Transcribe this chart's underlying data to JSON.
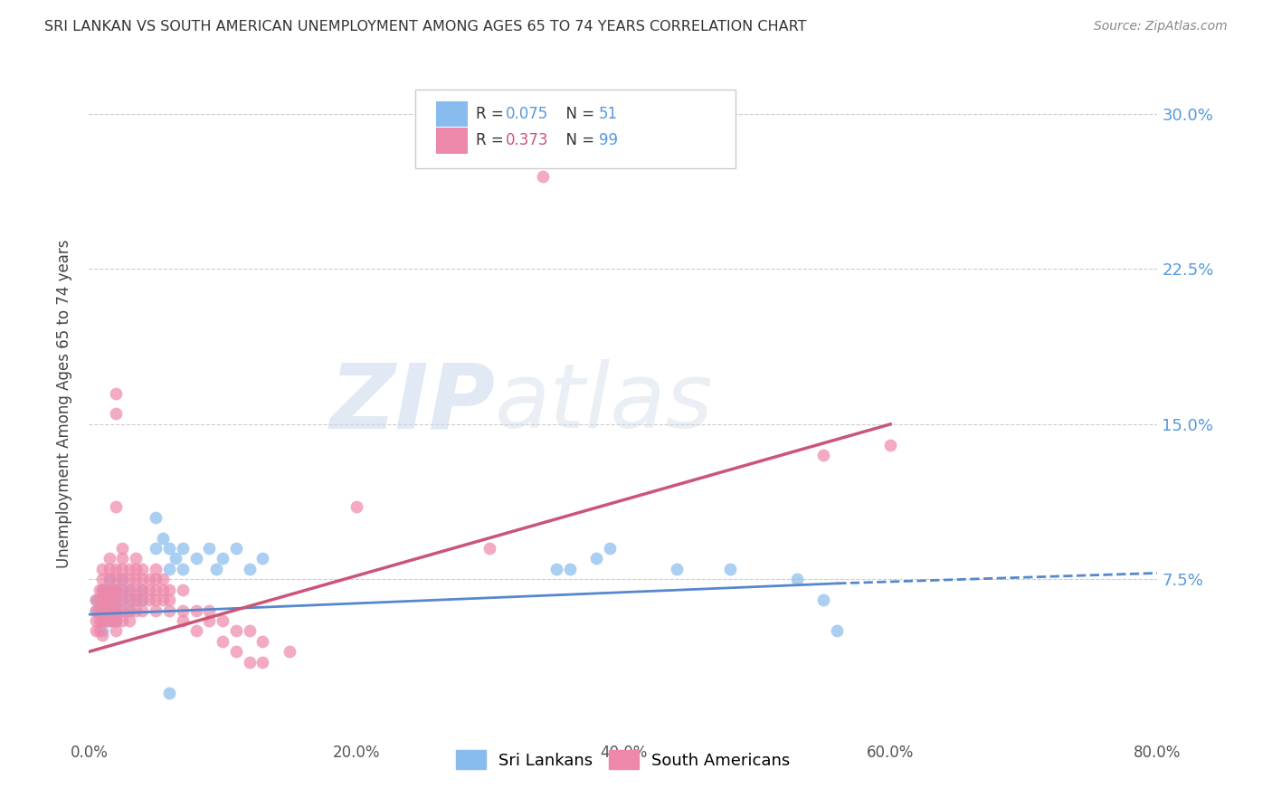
{
  "title": "SRI LANKAN VS SOUTH AMERICAN UNEMPLOYMENT AMONG AGES 65 TO 74 YEARS CORRELATION CHART",
  "source": "Source: ZipAtlas.com",
  "ylabel": "Unemployment Among Ages 65 to 74 years",
  "ytick_labels": [
    "30.0%",
    "22.5%",
    "15.0%",
    "7.5%"
  ],
  "ytick_values": [
    0.3,
    0.225,
    0.15,
    0.075
  ],
  "xlim": [
    0.0,
    0.8
  ],
  "ylim": [
    0.0,
    0.32
  ],
  "watermark_zip": "ZIP",
  "watermark_atlas": "atlas",
  "srilanka_color": "#88bbee",
  "southam_color": "#ee88aa",
  "srilanka_line_color": "#5588cc",
  "southam_line_color": "#cc5577",
  "right_tick_color": "#5599dd",
  "grid_color": "#cccccc",
  "srilanka_points": [
    [
      0.005,
      0.06
    ],
    [
      0.005,
      0.065
    ],
    [
      0.01,
      0.05
    ],
    [
      0.01,
      0.055
    ],
    [
      0.01,
      0.06
    ],
    [
      0.01,
      0.065
    ],
    [
      0.01,
      0.07
    ],
    [
      0.015,
      0.055
    ],
    [
      0.015,
      0.06
    ],
    [
      0.015,
      0.065
    ],
    [
      0.015,
      0.07
    ],
    [
      0.015,
      0.075
    ],
    [
      0.02,
      0.055
    ],
    [
      0.02,
      0.06
    ],
    [
      0.02,
      0.065
    ],
    [
      0.02,
      0.07
    ],
    [
      0.025,
      0.06
    ],
    [
      0.025,
      0.065
    ],
    [
      0.025,
      0.07
    ],
    [
      0.025,
      0.075
    ],
    [
      0.03,
      0.06
    ],
    [
      0.03,
      0.065
    ],
    [
      0.03,
      0.07
    ],
    [
      0.035,
      0.065
    ],
    [
      0.04,
      0.065
    ],
    [
      0.04,
      0.07
    ],
    [
      0.05,
      0.09
    ],
    [
      0.05,
      0.105
    ],
    [
      0.055,
      0.095
    ],
    [
      0.06,
      0.08
    ],
    [
      0.06,
      0.09
    ],
    [
      0.065,
      0.085
    ],
    [
      0.07,
      0.08
    ],
    [
      0.07,
      0.09
    ],
    [
      0.08,
      0.085
    ],
    [
      0.09,
      0.09
    ],
    [
      0.095,
      0.08
    ],
    [
      0.1,
      0.085
    ],
    [
      0.11,
      0.09
    ],
    [
      0.12,
      0.08
    ],
    [
      0.13,
      0.085
    ],
    [
      0.35,
      0.08
    ],
    [
      0.36,
      0.08
    ],
    [
      0.38,
      0.085
    ],
    [
      0.39,
      0.09
    ],
    [
      0.44,
      0.08
    ],
    [
      0.48,
      0.08
    ],
    [
      0.53,
      0.075
    ],
    [
      0.55,
      0.065
    ],
    [
      0.56,
      0.05
    ],
    [
      0.06,
      0.02
    ]
  ],
  "southam_points": [
    [
      0.005,
      0.05
    ],
    [
      0.005,
      0.055
    ],
    [
      0.005,
      0.06
    ],
    [
      0.005,
      0.065
    ],
    [
      0.008,
      0.05
    ],
    [
      0.008,
      0.055
    ],
    [
      0.008,
      0.06
    ],
    [
      0.008,
      0.065
    ],
    [
      0.008,
      0.07
    ],
    [
      0.01,
      0.048
    ],
    [
      0.01,
      0.055
    ],
    [
      0.01,
      0.06
    ],
    [
      0.01,
      0.065
    ],
    [
      0.01,
      0.07
    ],
    [
      0.01,
      0.075
    ],
    [
      0.01,
      0.08
    ],
    [
      0.012,
      0.055
    ],
    [
      0.012,
      0.06
    ],
    [
      0.012,
      0.065
    ],
    [
      0.012,
      0.07
    ],
    [
      0.015,
      0.055
    ],
    [
      0.015,
      0.06
    ],
    [
      0.015,
      0.065
    ],
    [
      0.015,
      0.07
    ],
    [
      0.015,
      0.075
    ],
    [
      0.015,
      0.08
    ],
    [
      0.015,
      0.085
    ],
    [
      0.018,
      0.055
    ],
    [
      0.018,
      0.06
    ],
    [
      0.018,
      0.065
    ],
    [
      0.018,
      0.07
    ],
    [
      0.02,
      0.05
    ],
    [
      0.02,
      0.055
    ],
    [
      0.02,
      0.06
    ],
    [
      0.02,
      0.065
    ],
    [
      0.02,
      0.07
    ],
    [
      0.02,
      0.075
    ],
    [
      0.02,
      0.08
    ],
    [
      0.02,
      0.11
    ],
    [
      0.02,
      0.155
    ],
    [
      0.02,
      0.165
    ],
    [
      0.025,
      0.055
    ],
    [
      0.025,
      0.06
    ],
    [
      0.025,
      0.065
    ],
    [
      0.025,
      0.07
    ],
    [
      0.025,
      0.075
    ],
    [
      0.025,
      0.08
    ],
    [
      0.025,
      0.085
    ],
    [
      0.025,
      0.09
    ],
    [
      0.03,
      0.055
    ],
    [
      0.03,
      0.06
    ],
    [
      0.03,
      0.065
    ],
    [
      0.03,
      0.07
    ],
    [
      0.03,
      0.075
    ],
    [
      0.03,
      0.08
    ],
    [
      0.035,
      0.06
    ],
    [
      0.035,
      0.065
    ],
    [
      0.035,
      0.07
    ],
    [
      0.035,
      0.075
    ],
    [
      0.035,
      0.08
    ],
    [
      0.035,
      0.085
    ],
    [
      0.04,
      0.06
    ],
    [
      0.04,
      0.065
    ],
    [
      0.04,
      0.07
    ],
    [
      0.04,
      0.075
    ],
    [
      0.04,
      0.08
    ],
    [
      0.045,
      0.065
    ],
    [
      0.045,
      0.07
    ],
    [
      0.045,
      0.075
    ],
    [
      0.05,
      0.06
    ],
    [
      0.05,
      0.065
    ],
    [
      0.05,
      0.07
    ],
    [
      0.05,
      0.075
    ],
    [
      0.05,
      0.08
    ],
    [
      0.055,
      0.065
    ],
    [
      0.055,
      0.07
    ],
    [
      0.055,
      0.075
    ],
    [
      0.06,
      0.06
    ],
    [
      0.06,
      0.065
    ],
    [
      0.06,
      0.07
    ],
    [
      0.07,
      0.055
    ],
    [
      0.07,
      0.06
    ],
    [
      0.07,
      0.07
    ],
    [
      0.08,
      0.05
    ],
    [
      0.08,
      0.06
    ],
    [
      0.09,
      0.055
    ],
    [
      0.09,
      0.06
    ],
    [
      0.1,
      0.045
    ],
    [
      0.1,
      0.055
    ],
    [
      0.11,
      0.04
    ],
    [
      0.11,
      0.05
    ],
    [
      0.12,
      0.035
    ],
    [
      0.12,
      0.05
    ],
    [
      0.13,
      0.035
    ],
    [
      0.13,
      0.045
    ],
    [
      0.15,
      0.04
    ],
    [
      0.2,
      0.11
    ],
    [
      0.3,
      0.09
    ],
    [
      0.34,
      0.27
    ],
    [
      0.55,
      0.135
    ],
    [
      0.6,
      0.14
    ]
  ]
}
